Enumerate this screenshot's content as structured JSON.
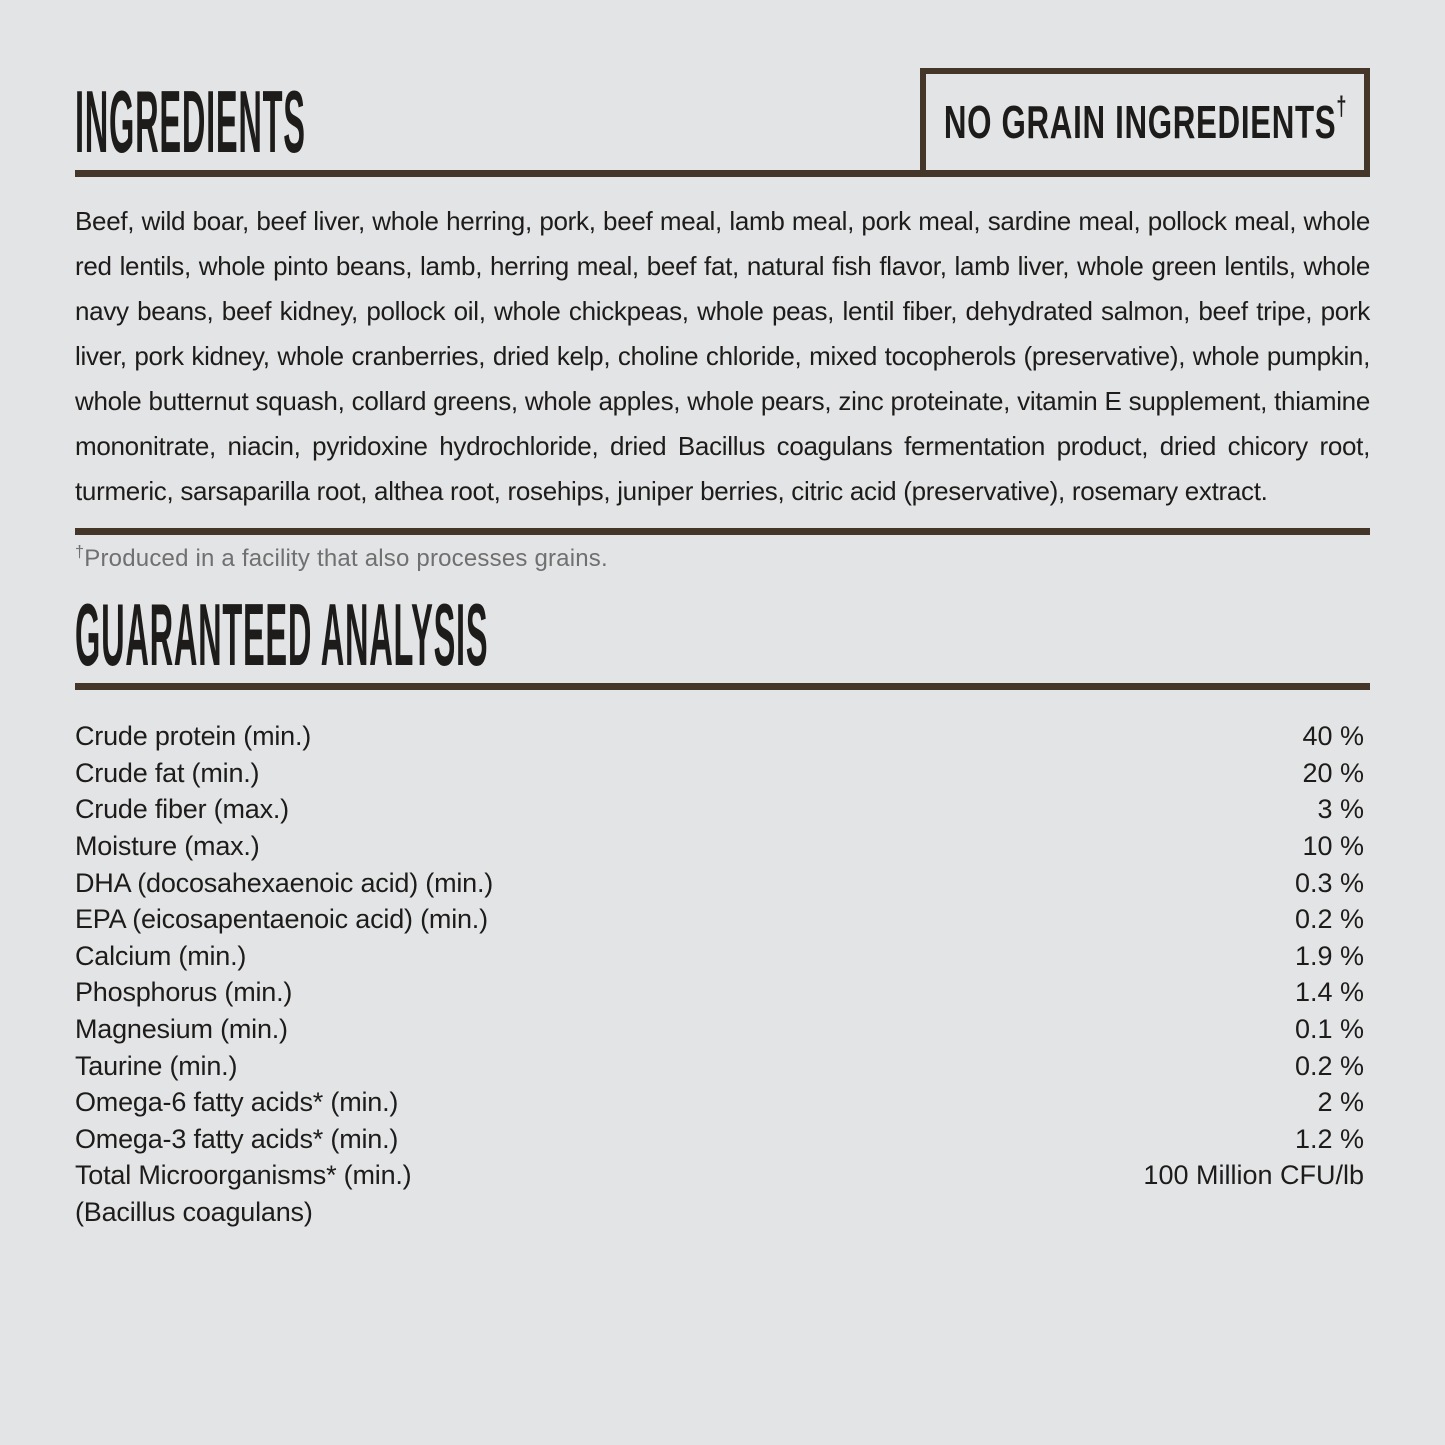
{
  "colors": {
    "bg": "#e3e4e6",
    "accent": "#443729",
    "text": "#1d1c1a",
    "muted": "#707070"
  },
  "ingredients": {
    "heading": "INGREDIENTS",
    "no_grain_badge": {
      "label": "NO GRAIN INGREDIENTS",
      "dagger": "†"
    },
    "body": "Beef, wild boar, beef liver, whole herring, pork, beef meal, lamb meal, pork meal, sardine meal, pollock meal, whole red lentils, whole pinto beans, lamb, herring meal, beef fat, natural fish flavor, lamb liver, whole green lentils, whole navy beans, beef kidney, pollock oil, whole chickpeas, whole peas, lentil fiber, dehydrated salmon, beef tripe, pork liver, pork kidney, whole cranberries, dried kelp, choline chloride, mixed tocopherols (preservative), whole pumpkin, whole butternut squash, collard greens, whole apples, whole pears, zinc proteinate, vitamin E supplement, thiamine mononitrate, niacin, pyridoxine hydrochloride, dried Bacillus coagulans fermentation product, dried chicory root, turmeric, sarsaparilla root, althea root, rosehips, juniper berries, citric acid (preservative), rosemary extract.",
    "footnote": {
      "dagger": "†",
      "text": "Produced in a facility that also processes grains."
    }
  },
  "guaranteed_analysis": {
    "heading": "GUARANTEED ANALYSIS",
    "rows": [
      {
        "label": "Crude protein (min.)",
        "value": "40 %"
      },
      {
        "label": "Crude fat (min.)",
        "value": "20 %"
      },
      {
        "label": "Crude fiber (max.)",
        "value": "3 %"
      },
      {
        "label": "Moisture (max.)",
        "value": "10 %"
      },
      {
        "label": "DHA (docosahexaenoic acid) (min.)",
        "value": "0.3 %"
      },
      {
        "label": "EPA (eicosapentaenoic acid) (min.)",
        "value": "0.2 %"
      },
      {
        "label": "Calcium (min.)",
        "value": "1.9 %"
      },
      {
        "label": "Phosphorus (min.)",
        "value": "1.4 %"
      },
      {
        "label": "Magnesium (min.)",
        "value": "0.1 %"
      },
      {
        "label": "Taurine (min.)",
        "value": "0.2 %"
      },
      {
        "label": "Omega-6 fatty acids* (min.)",
        "value": "2 %"
      },
      {
        "label": "Omega-3 fatty acids* (min.)",
        "value": "1.2 %"
      },
      {
        "label": "Total Microorganisms* (min.)",
        "value": "100 Million CFU/lb"
      },
      {
        "label": "(Bacillus coagulans)",
        "value": ""
      }
    ]
  }
}
